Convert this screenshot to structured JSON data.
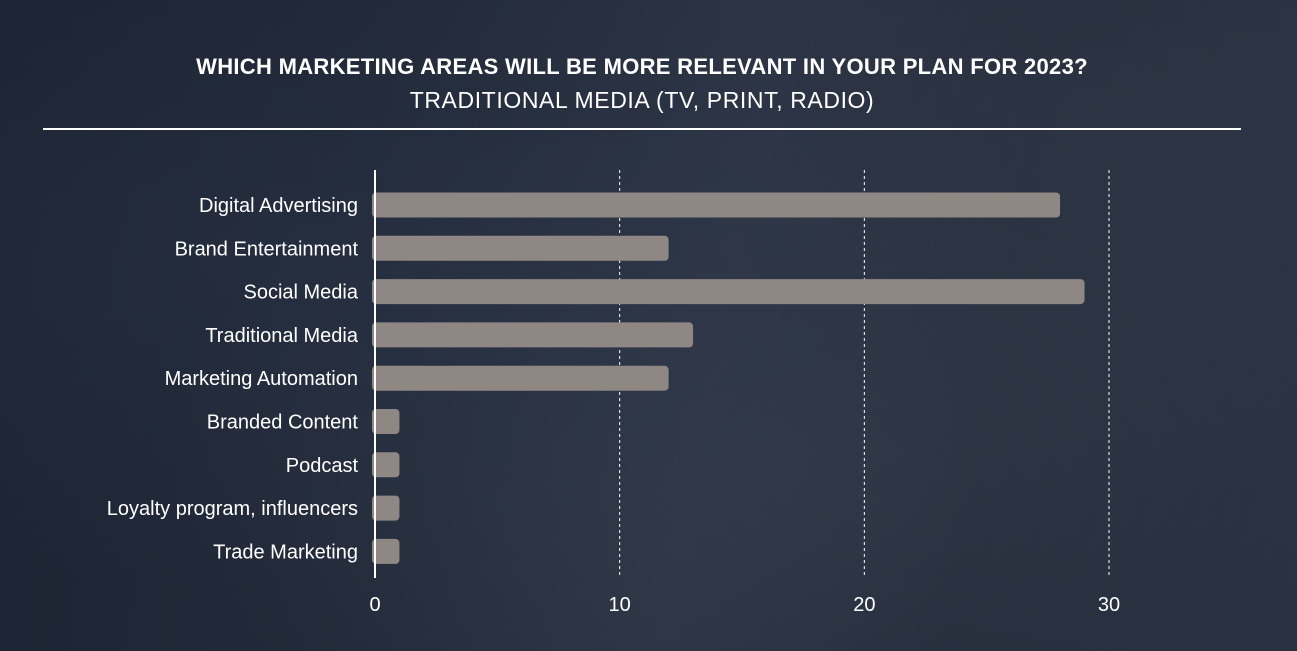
{
  "header": {
    "title": "WHICH MARKETING AREAS WILL BE MORE RELEVANT IN YOUR PLAN FOR 2023?",
    "subtitle": "TRADITIONAL MEDIA (TV, PRINT, RADIO)"
  },
  "colors": {
    "bar": "#8f8783",
    "axis": "#ffffff",
    "grid": "#ffffff"
  },
  "chart_data": {
    "type": "bar",
    "orientation": "horizontal",
    "title": "WHICH MARKETING AREAS WILL BE MORE RELEVANT IN YOUR PLAN FOR 2023?",
    "subtitle": "TRADITIONAL MEDIA (TV, PRINT, RADIO)",
    "categories": [
      "Digital Advertising",
      "Brand Entertainment",
      "Social Media",
      "Traditional Media",
      "Marketing Automation",
      "Branded Content",
      "Podcast",
      "Loyalty program, influencers",
      "Trade Marketing"
    ],
    "values": [
      28,
      12,
      29,
      13,
      12,
      1,
      1,
      1,
      1
    ],
    "xlim": [
      0,
      30
    ],
    "xticks": [
      "0",
      "10",
      "20",
      "30"
    ],
    "xtick_values": [
      0,
      10,
      20,
      30
    ],
    "grid": "vertical dashed",
    "legend": "none"
  }
}
